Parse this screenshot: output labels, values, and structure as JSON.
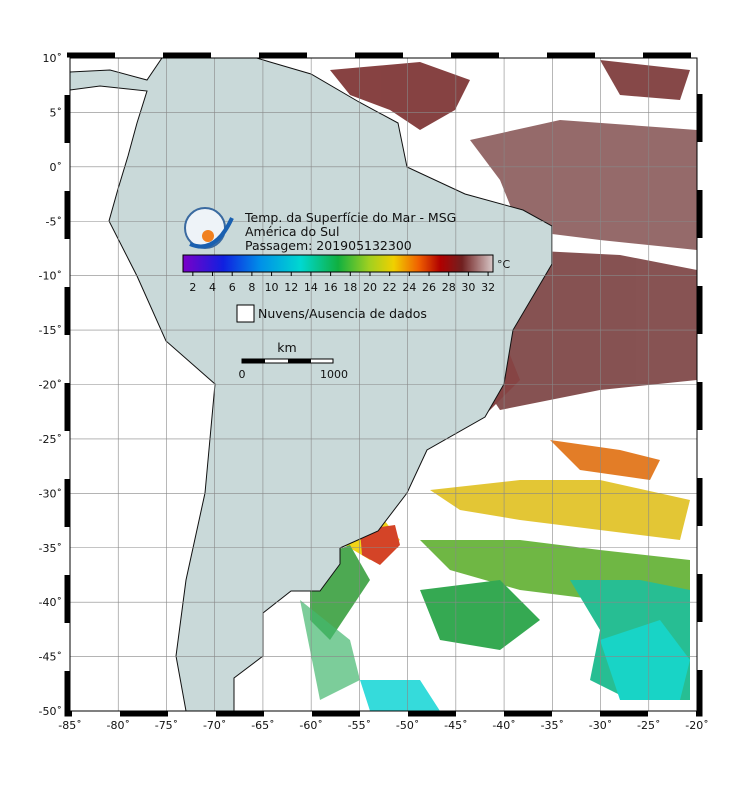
{
  "map": {
    "title": "Temp. da Superfície do Mar - MSG",
    "region": "América do Sul",
    "pass": "Passagem: 201905132300",
    "xlim": [
      -85,
      -20
    ],
    "ylim": [
      -50,
      10
    ],
    "xticks": [
      {
        "value": -85,
        "label": "-85˚"
      },
      {
        "value": -80,
        "label": "-80˚"
      },
      {
        "value": -75,
        "label": "-75˚"
      },
      {
        "value": -70,
        "label": "-70˚"
      },
      {
        "value": -65,
        "label": "-65˚"
      },
      {
        "value": -60,
        "label": "-60˚"
      },
      {
        "value": -55,
        "label": "-55˚"
      },
      {
        "value": -50,
        "label": "-50˚"
      },
      {
        "value": -45,
        "label": "-45˚"
      },
      {
        "value": -40,
        "label": "-40˚"
      },
      {
        "value": -35,
        "label": "-35˚"
      },
      {
        "value": -30,
        "label": "-30˚"
      },
      {
        "value": -25,
        "label": "-25˚"
      },
      {
        "value": -20,
        "label": "-20˚"
      }
    ],
    "yticks": [
      {
        "value": 10,
        "label": "10˚"
      },
      {
        "value": 5,
        "label": "5˚"
      },
      {
        "value": 0,
        "label": "0˚"
      },
      {
        "value": -5,
        "label": "-5˚"
      },
      {
        "value": -10,
        "label": "-10˚"
      },
      {
        "value": -15,
        "label": "-15˚"
      },
      {
        "value": -20,
        "label": "-20˚"
      },
      {
        "value": -25,
        "label": "-25˚"
      },
      {
        "value": -30,
        "label": "-30˚"
      },
      {
        "value": -35,
        "label": "-35˚"
      },
      {
        "value": -40,
        "label": "-40˚"
      },
      {
        "value": -45,
        "label": "-45˚"
      },
      {
        "value": -50,
        "label": "-50˚"
      }
    ],
    "grid": true,
    "colorbar": {
      "unit": "°C",
      "range": [
        1,
        32.5
      ],
      "ticks": [
        2,
        4,
        6,
        8,
        10,
        12,
        14,
        16,
        18,
        20,
        22,
        24,
        26,
        28,
        30,
        32
      ]
    },
    "legend": "Nuvens/Ausencia de dados",
    "scale": {
      "unit": "km",
      "labels": [
        "0",
        "1000"
      ]
    }
  }
}
